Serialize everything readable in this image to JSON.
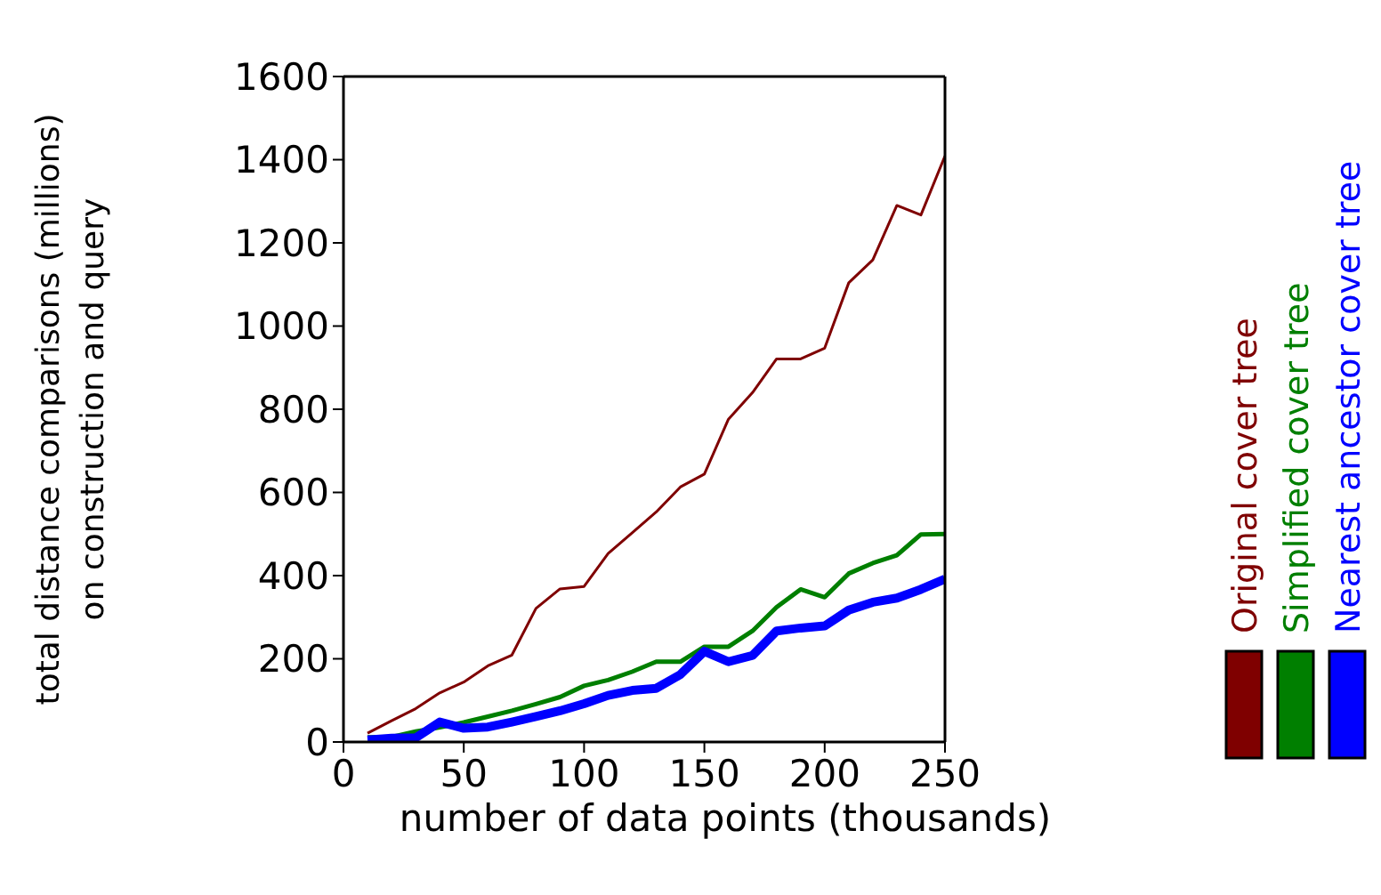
{
  "chart_data": {
    "type": "line",
    "xlabel": "number of data points (thousands)",
    "ylabel": "total distance comparisons (millions) on construction and query",
    "x": [
      10,
      20,
      30,
      40,
      50,
      60,
      70,
      80,
      90,
      100,
      110,
      120,
      130,
      140,
      150,
      160,
      170,
      180,
      190,
      200,
      210,
      220,
      230,
      240,
      250
    ],
    "xlim": [
      0,
      250
    ],
    "xticks": [
      0,
      50,
      100,
      150,
      200,
      250
    ],
    "ylim": [
      0,
      1600
    ],
    "yticks": [
      0,
      200,
      400,
      600,
      800,
      1000,
      1200,
      1400,
      1600
    ],
    "grid": false,
    "legend": "right",
    "marker": "none",
    "line_style": "solid",
    "series": [
      {
        "name": "Original cover tree",
        "color": "#7f0000",
        "values": [
          21,
          51,
          80,
          118,
          144,
          183,
          209,
          321,
          368,
          374,
          453,
          503,
          553,
          613,
          644,
          776,
          840,
          921,
          921,
          947,
          1104,
          1159,
          1290,
          1267,
          1409
        ]
      },
      {
        "name": "Simplified cover tree",
        "color": "#007f00",
        "values": [
          11,
          12,
          25,
          35,
          47,
          61,
          75,
          91,
          108,
          135,
          149,
          169,
          193,
          193,
          229,
          229,
          267,
          324,
          367,
          348,
          405,
          430,
          449,
          499,
          500
        ]
      },
      {
        "name": "Nearest ancestor cover tree",
        "color": "#0000ff",
        "values": [
          5,
          9,
          10,
          48,
          33,
          36,
          48,
          61,
          75,
          92,
          112,
          124,
          129,
          162,
          218,
          193,
          208,
          267,
          274,
          279,
          317,
          336,
          346,
          367,
          392
        ]
      }
    ]
  }
}
